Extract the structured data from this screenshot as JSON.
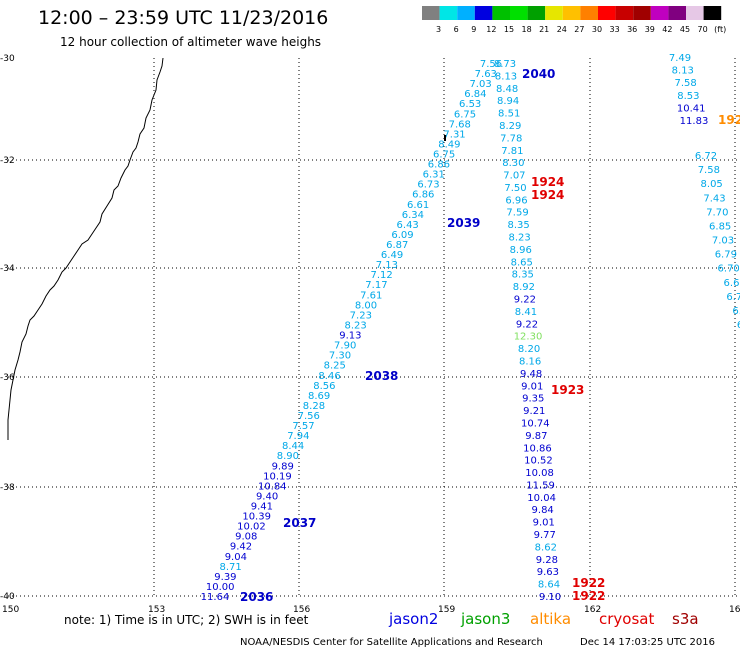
{
  "header": {
    "title": "12:00 – 23:59 UTC 11/23/2016",
    "subtitle": "12 hour collection of altimeter wave heighs"
  },
  "color_scale": {
    "colors": [
      "#808080",
      "#00e6e6",
      "#00b0ff",
      "#0000e0",
      "#00c000",
      "#00e000",
      "#00a000",
      "#e6e600",
      "#ffc000",
      "#ff8000",
      "#ff0000",
      "#c80000",
      "#a00000",
      "#c000c0",
      "#800080",
      "#e6c8e6",
      "#000000"
    ],
    "labels": [
      "3",
      "6",
      "9",
      "12",
      "15",
      "18",
      "21",
      "24",
      "27",
      "30",
      "33",
      "36",
      "39",
      "42",
      "45",
      "70",
      "(ft)"
    ]
  },
  "axes": {
    "lat_labels": [
      "-30",
      "-32",
      "-34",
      "-36",
      "-38",
      "-40"
    ],
    "lon_labels": [
      "150",
      "153",
      "156",
      "159",
      "162",
      "165"
    ]
  },
  "pass_labels": [
    {
      "text": "2040",
      "color": "#0000c8"
    },
    {
      "text": "2039",
      "color": "#0000c8"
    },
    {
      "text": "2038",
      "color": "#0000c8"
    },
    {
      "text": "2037",
      "color": "#0000c8"
    },
    {
      "text": "2036",
      "color": "#0000c8"
    },
    {
      "text": "1924",
      "color": "#e00000"
    },
    {
      "text": "1924",
      "color": "#e00000"
    },
    {
      "text": "1923",
      "color": "#e00000"
    },
    {
      "text": "1922",
      "color": "#e00000"
    },
    {
      "text": "1922",
      "color": "#e00000"
    },
    {
      "text": "192",
      "color": "#ff8c00"
    }
  ],
  "track_a": [
    "7.56",
    "7.63",
    "7.03",
    "6.84",
    "6.53",
    "6.75",
    "7.68",
    "7.31",
    "8.49",
    "6.75",
    "6.86",
    "6.31",
    "6.73",
    "6.86",
    "6.61",
    "6.34",
    "6.43",
    "6.09",
    "6.87",
    "6.49",
    "7.13",
    "7.12",
    "7.17",
    "7.61",
    "8.00",
    "7.23",
    "8.23",
    "9.13",
    "7.90",
    "7.30",
    "8.25",
    "8.46",
    "8.56",
    "8.69",
    "8.28",
    "7.56",
    "7.57",
    "7.94",
    "8.44",
    "8.90",
    "9.89",
    "10.19",
    "10.84",
    "9.40",
    "9.41",
    "10.39",
    "10.02",
    "9.08",
    "9.42",
    "9.04",
    "8.71",
    "9.39",
    "10.00",
    "11.64"
  ],
  "track_b": [
    "8.73",
    "8.13",
    "8.48",
    "8.94",
    "8.51",
    "8.29",
    "7.78",
    "7.81",
    "8.30",
    "7.07",
    "7.50",
    "6.96",
    "7.59",
    "8.35",
    "8.23",
    "8.96",
    "8.65",
    "8.35",
    "8.92",
    "9.22",
    "8.41",
    "9.22",
    "12.30",
    "8.20",
    "8.16",
    "9.48",
    "9.01",
    "9.35",
    "9.21",
    "10.74",
    "9.87",
    "10.86",
    "10.52",
    "10.08",
    "11.59",
    "10.04",
    "9.84",
    "9.01",
    "9.77",
    "8.62",
    "9.28",
    "9.63",
    "8.64",
    "9.10"
  ],
  "track_c": [
    "7.49",
    "8.13",
    "7.58",
    "8.53",
    "10.41",
    "11.83"
  ],
  "track_d": [
    "6.72",
    "7.58",
    "8.05",
    "7.43",
    "7.70",
    "6.85",
    "7.03",
    "6.79",
    "6.70",
    "6.6",
    "6.7",
    "6.",
    "6"
  ],
  "footer": {
    "note": "note: 1) Time is in UTC; 2) SWH is in feet",
    "satellites": [
      {
        "name": "jason2",
        "color": "#0000e0"
      },
      {
        "name": "jason3",
        "color": "#00a000"
      },
      {
        "name": "altika",
        "color": "#ff8c00"
      },
      {
        "name": "cryosat",
        "color": "#e00000"
      },
      {
        "name": "s3a",
        "color": "#a00000"
      }
    ],
    "credit": "NOAA/NESDIS Center for Satellite Applications and Research",
    "timestamp": "Dec 14 17:03:25 UTC 2016"
  }
}
